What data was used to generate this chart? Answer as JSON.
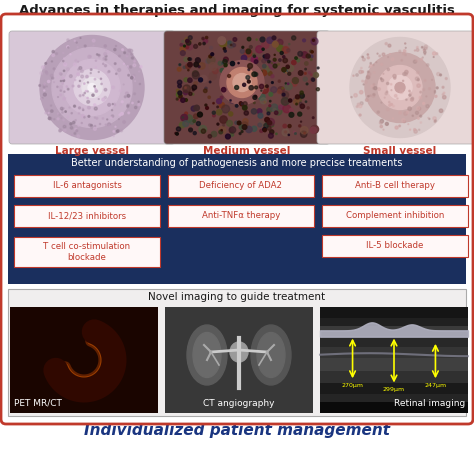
{
  "title": "Advances in therapies and imaging for systemic vasculitis",
  "footer": "Individualized patient management",
  "bg_color": "#ffffff",
  "title_color": "#1a1a1a",
  "footer_color": "#1a3580",
  "border_color": "#c0392b",
  "vessel_labels": [
    "Large vessel",
    "Medium vessel",
    "Small vessel"
  ],
  "vessel_label_color": "#c0392b",
  "middle_section_bg": "#1a2f5e",
  "middle_section_title": "Better understanding of pathogenesis and more precise treatments",
  "middle_section_title_color": "#ffffff",
  "treatments_col1": [
    "IL-6 antagonists",
    "IL-12/23 inhibitors",
    "T cell co-stimulation\nblockade"
  ],
  "treatments_col2": [
    "Deficiency of ADA2",
    "Anti-TNFα therapy"
  ],
  "treatments_col3": [
    "Anti-B cell therapy",
    "Complement inhibition",
    "IL-5 blockade"
  ],
  "treatment_box_bg": "#fff8f8",
  "treatment_box_border": "#c0392b",
  "treatment_text_color": "#c0392b",
  "imaging_section_bg": "#f0eeee",
  "imaging_section_border": "#c0392b",
  "imaging_section_title": "Novel imaging to guide treatment",
  "imaging_section_title_color": "#1a1a1a",
  "imaging_labels": [
    "PET MR/CT",
    "CT angiography",
    "Retinal imaging"
  ],
  "pet_bg": "#000000",
  "ct_bg": "#2a2a2a",
  "retinal_bg": "#050505"
}
